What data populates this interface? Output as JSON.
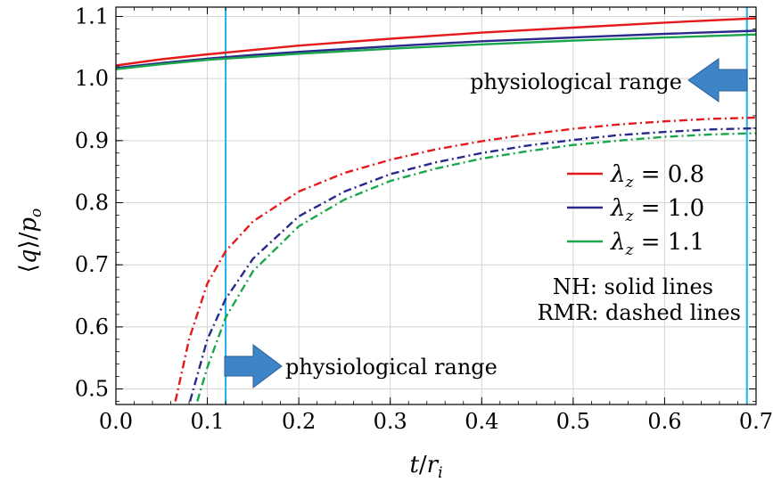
{
  "chart_data": {
    "type": "line",
    "xlabel": "t/r_i",
    "ylabel": "⟨q⟩/p_o",
    "xlim": [
      0.0,
      0.7
    ],
    "ylim": [
      0.475,
      1.115
    ],
    "x_ticks": [
      "0.0",
      "0.1",
      "0.2",
      "0.3",
      "0.4",
      "0.5",
      "0.6",
      "0.7"
    ],
    "y_ticks": [
      "0.5",
      "0.6",
      "0.7",
      "0.8",
      "0.9",
      "1.0",
      "1.1"
    ],
    "grid": true,
    "legend_position": "right",
    "colors": {
      "red": "#e41a1c",
      "blue": "#2a2a8c",
      "green": "#1aa64a",
      "cyan": "#1fb0e8",
      "arrow": "#3d85c6"
    },
    "series": [
      {
        "name": "λz = 0.8",
        "style": "solid",
        "color": "#e41a1c",
        "x": [
          0.0,
          0.05,
          0.1,
          0.15,
          0.2,
          0.3,
          0.4,
          0.5,
          0.6,
          0.7
        ],
        "y": [
          1.021,
          1.031,
          1.039,
          1.046,
          1.053,
          1.064,
          1.074,
          1.082,
          1.09,
          1.097
        ]
      },
      {
        "name": "λz = 1.0",
        "style": "solid",
        "color": "#2a2a8c",
        "x": [
          0.0,
          0.05,
          0.1,
          0.15,
          0.2,
          0.3,
          0.4,
          0.5,
          0.6,
          0.7
        ],
        "y": [
          1.017,
          1.025,
          1.032,
          1.038,
          1.043,
          1.052,
          1.06,
          1.066,
          1.072,
          1.077
        ]
      },
      {
        "name": "λz = 1.1",
        "style": "solid",
        "color": "#1aa64a",
        "x": [
          0.0,
          0.05,
          0.1,
          0.15,
          0.2,
          0.3,
          0.4,
          0.5,
          0.6,
          0.7
        ],
        "y": [
          1.015,
          1.023,
          1.03,
          1.035,
          1.04,
          1.048,
          1.055,
          1.061,
          1.066,
          1.071
        ]
      },
      {
        "name": "",
        "style": "dashed",
        "color": "#e41a1c",
        "x": [
          0.065,
          0.08,
          0.1,
          0.12,
          0.15,
          0.2,
          0.25,
          0.3,
          0.35,
          0.4,
          0.45,
          0.5,
          0.55,
          0.6,
          0.65,
          0.7
        ],
        "y": [
          0.48,
          0.58,
          0.67,
          0.722,
          0.77,
          0.818,
          0.848,
          0.869,
          0.886,
          0.899,
          0.91,
          0.919,
          0.926,
          0.931,
          0.935,
          0.937
        ]
      },
      {
        "name": "",
        "style": "dashed",
        "color": "#2a2a8c",
        "x": [
          0.081,
          0.1,
          0.12,
          0.15,
          0.2,
          0.25,
          0.3,
          0.35,
          0.4,
          0.45,
          0.5,
          0.55,
          0.6,
          0.65,
          0.7
        ],
        "y": [
          0.48,
          0.58,
          0.645,
          0.71,
          0.778,
          0.818,
          0.846,
          0.865,
          0.88,
          0.892,
          0.901,
          0.909,
          0.914,
          0.918,
          0.92
        ]
      },
      {
        "name": "",
        "style": "dashed",
        "color": "#1aa64a",
        "x": [
          0.089,
          0.1,
          0.12,
          0.15,
          0.2,
          0.25,
          0.3,
          0.35,
          0.4,
          0.45,
          0.5,
          0.55,
          0.6,
          0.65,
          0.7
        ],
        "y": [
          0.48,
          0.535,
          0.615,
          0.69,
          0.762,
          0.805,
          0.835,
          0.855,
          0.871,
          0.883,
          0.893,
          0.9,
          0.906,
          0.91,
          0.912
        ]
      }
    ],
    "vertical_lines": [
      {
        "x": 0.12,
        "color": "#1fb0e8"
      },
      {
        "x": 0.69,
        "color": "#1fb0e8"
      }
    ],
    "annotations": {
      "physiological_range_top": "physiological range",
      "physiological_range_bottom": "physiological range",
      "model_note_line1": "NH: solid lines",
      "model_note_line2": "RMR: dashed lines"
    },
    "legend": [
      {
        "label_main": "λ",
        "label_sub": "z",
        "label_rest": " = 0.8",
        "color": "#e41a1c"
      },
      {
        "label_main": "λ",
        "label_sub": "z",
        "label_rest": " = 1.0",
        "color": "#2a2a8c"
      },
      {
        "label_main": "λ",
        "label_sub": "z",
        "label_rest": " = 1.1",
        "color": "#1aa64a"
      }
    ]
  }
}
